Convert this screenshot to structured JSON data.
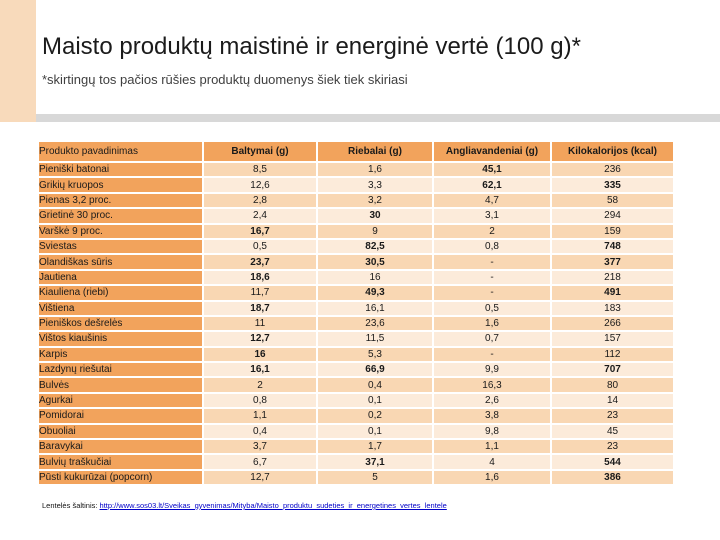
{
  "slide": {
    "title": "Maisto produktų maistinė ir energinė vertė (100 g)*",
    "subtitle": "*skirtingų tos pačios rūšies produktų duomenys šiek tiek skiriasi"
  },
  "table": {
    "columns": [
      "Produkto pavadinimas",
      "Baltymai (g)",
      "Riebalai (g)",
      "Angliavandeniai (g)",
      "Kilokalorijos (kcal)"
    ],
    "rows": [
      {
        "name": "Pieniški batonai",
        "values": [
          "8,5",
          "1,6",
          "45,1",
          "236"
        ],
        "bold": [
          false,
          false,
          true,
          false
        ]
      },
      {
        "name": "Grikių kruopos",
        "values": [
          "12,6",
          "3,3",
          "62,1",
          "335"
        ],
        "bold": [
          false,
          false,
          true,
          true
        ]
      },
      {
        "name": "Pienas 3,2 proc.",
        "values": [
          "2,8",
          "3,2",
          "4,7",
          "58"
        ],
        "bold": [
          false,
          false,
          false,
          false
        ]
      },
      {
        "name": "Grietinė 30 proc.",
        "values": [
          "2,4",
          "30",
          "3,1",
          "294"
        ],
        "bold": [
          false,
          true,
          false,
          false
        ]
      },
      {
        "name": "Varškė 9 proc.",
        "values": [
          "16,7",
          "9",
          "2",
          "159"
        ],
        "bold": [
          true,
          false,
          false,
          false
        ]
      },
      {
        "name": "Sviestas",
        "values": [
          "0,5",
          "82,5",
          "0,8",
          "748"
        ],
        "bold": [
          false,
          true,
          false,
          true
        ]
      },
      {
        "name": "Olandiškas sūris",
        "values": [
          "23,7",
          "30,5",
          "-",
          "377"
        ],
        "bold": [
          true,
          true,
          false,
          true
        ]
      },
      {
        "name": "Jautiena",
        "values": [
          "18,6",
          "16",
          "-",
          "218"
        ],
        "bold": [
          true,
          false,
          false,
          false
        ]
      },
      {
        "name": "Kiauliena (riebi)",
        "values": [
          "11,7",
          "49,3",
          "-",
          "491"
        ],
        "bold": [
          false,
          true,
          false,
          true
        ]
      },
      {
        "name": "Vištiena",
        "values": [
          "18,7",
          "16,1",
          "0,5",
          "183"
        ],
        "bold": [
          true,
          false,
          false,
          false
        ]
      },
      {
        "name": "Pieniškos dešrelės",
        "values": [
          "11",
          "23,6",
          "1,6",
          "266"
        ],
        "bold": [
          false,
          false,
          false,
          false
        ]
      },
      {
        "name": "Vištos kiaušinis",
        "values": [
          "12,7",
          "11,5",
          "0,7",
          "157"
        ],
        "bold": [
          true,
          false,
          false,
          false
        ]
      },
      {
        "name": "Karpis",
        "values": [
          "16",
          "5,3",
          "-",
          "112"
        ],
        "bold": [
          true,
          false,
          false,
          false
        ]
      },
      {
        "name": "Lazdynų riešutai",
        "values": [
          "16,1",
          "66,9",
          "9,9",
          "707"
        ],
        "bold": [
          true,
          true,
          false,
          true
        ]
      },
      {
        "name": "Bulvės",
        "values": [
          "2",
          "0,4",
          "16,3",
          "80"
        ],
        "bold": [
          false,
          false,
          false,
          false
        ]
      },
      {
        "name": "Agurkai",
        "values": [
          "0,8",
          "0,1",
          "2,6",
          "14"
        ],
        "bold": [
          false,
          false,
          false,
          false
        ]
      },
      {
        "name": "Pomidorai",
        "values": [
          "1,1",
          "0,2",
          "3,8",
          "23"
        ],
        "bold": [
          false,
          false,
          false,
          false
        ]
      },
      {
        "name": "Obuoliai",
        "values": [
          "0,4",
          "0,1",
          "9,8",
          "45"
        ],
        "bold": [
          false,
          false,
          false,
          false
        ]
      },
      {
        "name": "Baravykai",
        "values": [
          "3,7",
          "1,7",
          "1,1",
          "23"
        ],
        "bold": [
          false,
          false,
          false,
          false
        ]
      },
      {
        "name": "Bulvių traškučiai",
        "values": [
          "6,7",
          "37,1",
          "4",
          "544"
        ],
        "bold": [
          false,
          true,
          false,
          true
        ]
      },
      {
        "name": "Pūsti kukurūzai (popcorn)",
        "values": [
          "12,7",
          "5",
          "1,6",
          "386"
        ],
        "bold": [
          false,
          false,
          false,
          true
        ]
      }
    ]
  },
  "footer": {
    "label": "Lentelės šaltinis:",
    "link": "http://www.sos03.lt/Sveikas_gyvenimas/Mityba/Maisto_produktu_sudeties_ir_energetines_vertes_lentele"
  },
  "colors": {
    "accent_orange": "#F2A35C",
    "band_dark": "#F9D7B3",
    "band_light": "#FCEBDA",
    "side_block": "#F8DABB",
    "divider_gray": "#D8D8D8",
    "link_blue": "#0000C8"
  }
}
